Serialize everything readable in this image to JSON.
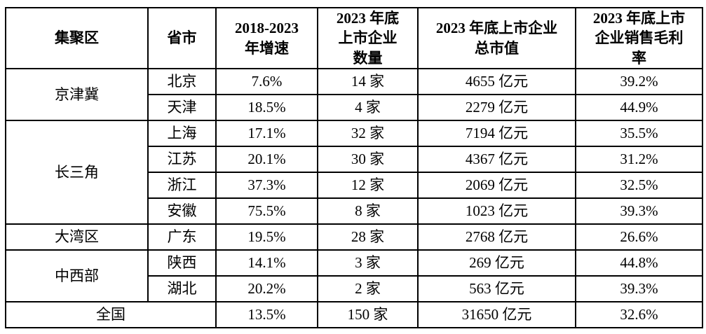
{
  "table": {
    "headers": {
      "cluster": "集聚区",
      "province": "省市",
      "growth": "2018-2023\n年增速",
      "listed_count": "2023 年底\n上市企业\n数量",
      "market_cap": "2023 年底上市企业\n总市值",
      "gross_margin": "2023 年底上市\n企业销售毛利\n率"
    },
    "groups": [
      {
        "region": "京津冀",
        "rows": [
          {
            "province": "北京",
            "growth": "7.6%",
            "count": "14 家",
            "cap": "4655 亿元",
            "margin": "39.2%"
          },
          {
            "province": "天津",
            "growth": "18.5%",
            "count": "4 家",
            "cap": "2279 亿元",
            "margin": "44.9%"
          }
        ]
      },
      {
        "region": "长三角",
        "rows": [
          {
            "province": "上海",
            "growth": "17.1%",
            "count": "32 家",
            "cap": "7194 亿元",
            "margin": "35.5%"
          },
          {
            "province": "江苏",
            "growth": "20.1%",
            "count": "30 家",
            "cap": "4367 亿元",
            "margin": "31.2%"
          },
          {
            "province": "浙江",
            "growth": "37.3%",
            "count": "12 家",
            "cap": "2069 亿元",
            "margin": "32.5%"
          },
          {
            "province": "安徽",
            "growth": "75.5%",
            "count": "8 家",
            "cap": "1023 亿元",
            "margin": "39.3%"
          }
        ]
      },
      {
        "region": "大湾区",
        "rows": [
          {
            "province": "广东",
            "growth": "19.5%",
            "count": "28 家",
            "cap": "2768 亿元",
            "margin": "26.6%"
          }
        ]
      },
      {
        "region": "中西部",
        "rows": [
          {
            "province": "陕西",
            "growth": "14.1%",
            "count": "3 家",
            "cap": "269 亿元",
            "margin": "44.8%"
          },
          {
            "province": "湖北",
            "growth": "20.2%",
            "count": "2 家",
            "cap": "563 亿元",
            "margin": "39.3%"
          }
        ]
      }
    ],
    "total": {
      "label": "全国",
      "growth": "13.5%",
      "count": "150 家",
      "cap": "31650 亿元",
      "margin": "32.6%"
    }
  }
}
